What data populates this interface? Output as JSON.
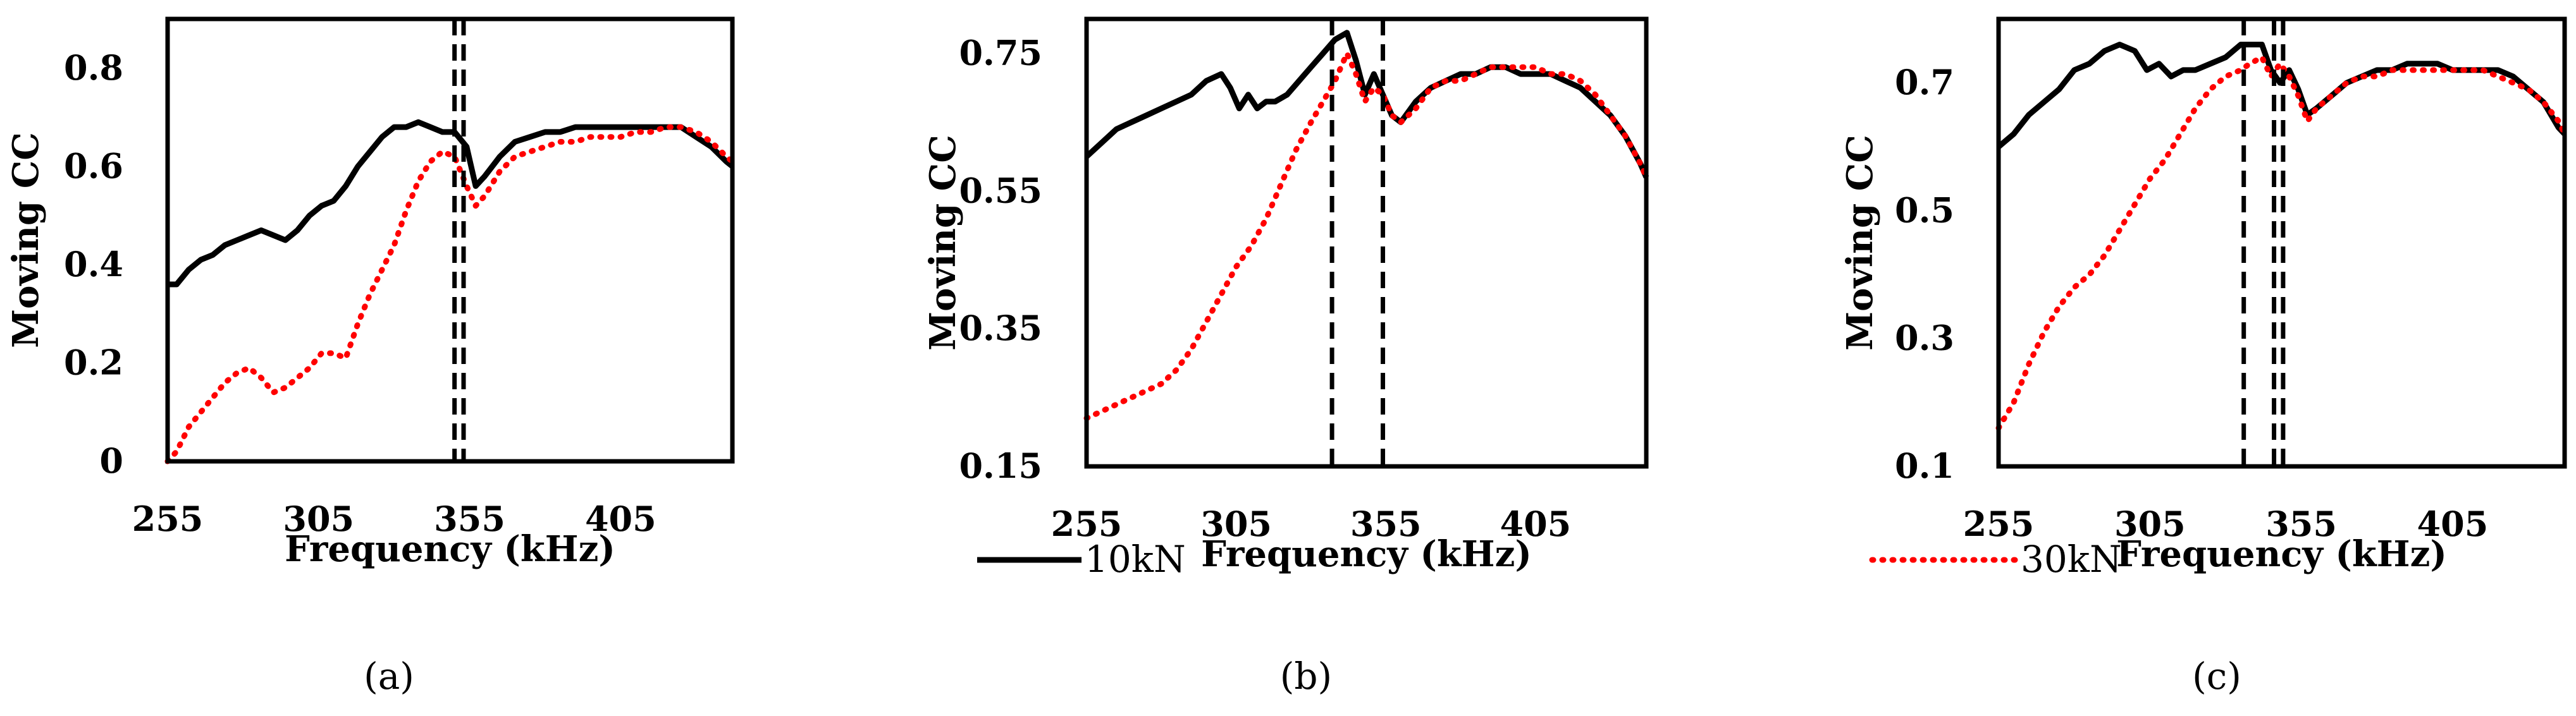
{
  "legend": {
    "entries": [
      {
        "label": "10kN",
        "color": "#000000",
        "style": "solid"
      },
      {
        "label": "30kN",
        "color": "#ff0000",
        "style": "dotted"
      }
    ]
  },
  "chart_data": [
    {
      "type": "line",
      "panel_label": "(a)",
      "xlabel": "Frequency (kHz)",
      "ylabel": "Moving CC",
      "xlim": [
        255,
        442
      ],
      "ylim": [
        0,
        0.9
      ],
      "xticks": [
        255,
        305,
        355,
        405
      ],
      "xtick_labels": [
        "255",
        "305",
        "355",
        "405"
      ],
      "yticks": [
        0,
        0.2,
        0.4,
        0.6,
        0.8
      ],
      "ytick_labels": [
        "0",
        "0.2",
        "0.4",
        "0.6",
        "0.8"
      ],
      "vlines": [
        350,
        353
      ],
      "series": [
        {
          "name": "10kN",
          "color": "#000000",
          "style": "solid",
          "x": [
            255,
            258,
            262,
            266,
            270,
            274,
            278,
            282,
            286,
            290,
            294,
            298,
            302,
            306,
            310,
            314,
            318,
            322,
            326,
            330,
            334,
            338,
            342,
            346,
            350,
            354,
            357,
            360,
            365,
            370,
            375,
            380,
            385,
            390,
            395,
            400,
            405,
            410,
            415,
            420,
            425,
            430,
            435,
            440,
            442
          ],
          "y": [
            0.36,
            0.36,
            0.39,
            0.41,
            0.42,
            0.44,
            0.45,
            0.46,
            0.47,
            0.46,
            0.45,
            0.47,
            0.5,
            0.52,
            0.53,
            0.56,
            0.6,
            0.63,
            0.66,
            0.68,
            0.68,
            0.69,
            0.68,
            0.67,
            0.67,
            0.64,
            0.56,
            0.58,
            0.62,
            0.65,
            0.66,
            0.67,
            0.67,
            0.68,
            0.68,
            0.68,
            0.68,
            0.68,
            0.68,
            0.68,
            0.68,
            0.66,
            0.64,
            0.61,
            0.6
          ]
        },
        {
          "name": "30kN",
          "color": "#ff0000",
          "style": "dotted",
          "x": [
            255,
            258,
            262,
            266,
            270,
            274,
            278,
            282,
            286,
            290,
            294,
            298,
            302,
            306,
            310,
            314,
            318,
            322,
            326,
            330,
            334,
            338,
            342,
            346,
            350,
            354,
            357,
            360,
            365,
            370,
            375,
            380,
            385,
            390,
            395,
            400,
            405,
            410,
            415,
            420,
            425,
            430,
            435,
            440,
            442
          ],
          "y": [
            0.0,
            0.02,
            0.07,
            0.1,
            0.13,
            0.16,
            0.18,
            0.19,
            0.17,
            0.14,
            0.15,
            0.17,
            0.19,
            0.22,
            0.22,
            0.21,
            0.28,
            0.34,
            0.39,
            0.44,
            0.51,
            0.57,
            0.61,
            0.63,
            0.62,
            0.56,
            0.52,
            0.54,
            0.59,
            0.62,
            0.63,
            0.64,
            0.65,
            0.65,
            0.66,
            0.66,
            0.66,
            0.67,
            0.67,
            0.68,
            0.68,
            0.67,
            0.65,
            0.62,
            0.61
          ]
        }
      ]
    },
    {
      "type": "line",
      "panel_label": "(b)",
      "xlabel": "Frequency (kHz)",
      "ylabel": "Moving CC",
      "xlim": [
        255,
        442
      ],
      "ylim": [
        0.15,
        0.8
      ],
      "xticks": [
        255,
        305,
        355,
        405
      ],
      "xtick_labels": [
        "255",
        "305",
        "355",
        "405"
      ],
      "yticks": [
        0.15,
        0.35,
        0.55,
        0.75
      ],
      "ytick_labels": [
        "0.15",
        "0.35",
        "0.55",
        "0.75"
      ],
      "vlines": [
        337,
        354
      ],
      "series": [
        {
          "name": "10kN",
          "color": "#000000",
          "style": "solid",
          "x": [
            255,
            260,
            265,
            270,
            275,
            280,
            285,
            290,
            295,
            300,
            303,
            306,
            309,
            312,
            315,
            318,
            322,
            326,
            330,
            334,
            338,
            342,
            345,
            348,
            351,
            354,
            357,
            360,
            365,
            370,
            375,
            380,
            385,
            390,
            395,
            400,
            405,
            410,
            415,
            420,
            425,
            430,
            435,
            440,
            442
          ],
          "y": [
            0.6,
            0.62,
            0.64,
            0.65,
            0.66,
            0.67,
            0.68,
            0.69,
            0.71,
            0.72,
            0.7,
            0.67,
            0.69,
            0.67,
            0.68,
            0.68,
            0.69,
            0.71,
            0.73,
            0.75,
            0.77,
            0.78,
            0.74,
            0.69,
            0.72,
            0.69,
            0.66,
            0.65,
            0.68,
            0.7,
            0.71,
            0.72,
            0.72,
            0.73,
            0.73,
            0.72,
            0.72,
            0.72,
            0.71,
            0.7,
            0.68,
            0.66,
            0.63,
            0.59,
            0.57
          ]
        },
        {
          "name": "30kN",
          "color": "#ff0000",
          "style": "dotted",
          "x": [
            255,
            260,
            265,
            270,
            275,
            280,
            285,
            290,
            295,
            300,
            305,
            310,
            315,
            320,
            325,
            330,
            334,
            338,
            342,
            345,
            348,
            351,
            354,
            357,
            360,
            365,
            370,
            375,
            380,
            385,
            390,
            395,
            400,
            405,
            410,
            415,
            420,
            425,
            430,
            435,
            440,
            442
          ],
          "y": [
            0.22,
            0.23,
            0.24,
            0.25,
            0.26,
            0.27,
            0.29,
            0.32,
            0.36,
            0.4,
            0.44,
            0.47,
            0.51,
            0.56,
            0.61,
            0.65,
            0.68,
            0.71,
            0.75,
            0.72,
            0.68,
            0.7,
            0.69,
            0.66,
            0.65,
            0.67,
            0.7,
            0.71,
            0.71,
            0.72,
            0.73,
            0.73,
            0.73,
            0.73,
            0.72,
            0.72,
            0.71,
            0.69,
            0.66,
            0.63,
            0.59,
            0.57
          ]
        }
      ]
    },
    {
      "type": "line",
      "panel_label": "(c)",
      "xlabel": "Frequency (kHz)",
      "ylabel": "Moving CC",
      "xlim": [
        255,
        442
      ],
      "ylim": [
        0.1,
        0.8
      ],
      "xticks": [
        255,
        305,
        355,
        405
      ],
      "xtick_labels": [
        "255",
        "305",
        "355",
        "405"
      ],
      "yticks": [
        0.1,
        0.3,
        0.5,
        0.7
      ],
      "ytick_labels": [
        "0.1",
        "0.3",
        "0.5",
        "0.7"
      ],
      "vlines": [
        336,
        346,
        349
      ],
      "series": [
        {
          "name": "10kN",
          "color": "#000000",
          "style": "solid",
          "x": [
            255,
            260,
            265,
            270,
            275,
            280,
            285,
            290,
            295,
            300,
            304,
            308,
            312,
            316,
            320,
            325,
            330,
            335,
            338,
            342,
            345,
            348,
            351,
            354,
            357,
            360,
            365,
            370,
            375,
            380,
            385,
            390,
            395,
            400,
            405,
            410,
            415,
            420,
            425,
            430,
            435,
            440,
            442
          ],
          "y": [
            0.6,
            0.62,
            0.65,
            0.67,
            0.69,
            0.72,
            0.73,
            0.75,
            0.76,
            0.75,
            0.72,
            0.73,
            0.71,
            0.72,
            0.72,
            0.73,
            0.74,
            0.76,
            0.76,
            0.76,
            0.72,
            0.7,
            0.72,
            0.69,
            0.65,
            0.66,
            0.68,
            0.7,
            0.71,
            0.72,
            0.72,
            0.73,
            0.73,
            0.73,
            0.72,
            0.72,
            0.72,
            0.72,
            0.71,
            0.69,
            0.67,
            0.63,
            0.62
          ]
        },
        {
          "name": "30kN",
          "color": "#ff0000",
          "style": "dotted",
          "x": [
            255,
            260,
            265,
            270,
            275,
            280,
            285,
            290,
            295,
            300,
            305,
            310,
            315,
            320,
            325,
            330,
            335,
            338,
            342,
            345,
            348,
            351,
            354,
            357,
            360,
            365,
            370,
            375,
            380,
            385,
            390,
            395,
            400,
            405,
            410,
            415,
            420,
            425,
            430,
            435,
            440,
            442
          ],
          "y": [
            0.16,
            0.2,
            0.26,
            0.31,
            0.35,
            0.38,
            0.4,
            0.43,
            0.47,
            0.51,
            0.55,
            0.58,
            0.62,
            0.66,
            0.69,
            0.71,
            0.72,
            0.73,
            0.74,
            0.71,
            0.73,
            0.71,
            0.68,
            0.64,
            0.66,
            0.68,
            0.7,
            0.71,
            0.71,
            0.72,
            0.72,
            0.72,
            0.72,
            0.72,
            0.72,
            0.72,
            0.71,
            0.7,
            0.69,
            0.67,
            0.64,
            0.62
          ]
        }
      ]
    }
  ]
}
